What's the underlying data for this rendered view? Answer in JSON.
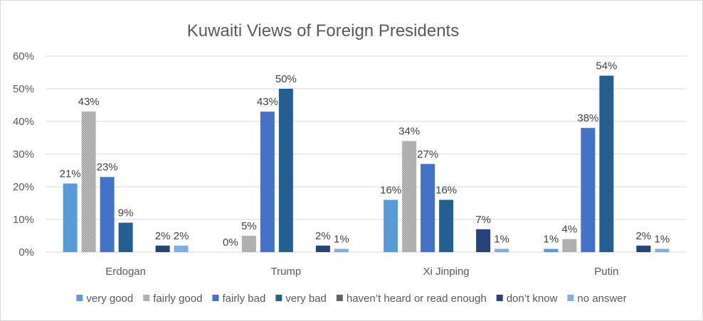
{
  "chart_data": {
    "type": "bar",
    "title": "Kuwaiti Views of Foreign Presidents",
    "xlabel": "",
    "ylabel": "",
    "categories": [
      "Erdogan",
      "Trump",
      "Xi Jinping",
      "Putin"
    ],
    "ylim": [
      0,
      60
    ],
    "yticks": [
      "0%",
      "10%",
      "20%",
      "30%",
      "40%",
      "50%",
      "60%"
    ],
    "grid": true,
    "legend_position": "bottom",
    "series": [
      {
        "name": "very good",
        "color": "#5b9bd5",
        "pattern": "solid",
        "values": [
          21,
          0,
          16,
          1
        ],
        "labels": [
          "21%",
          "0%",
          "16%",
          "1%"
        ]
      },
      {
        "name": "fairly good",
        "color": "#a5a5a5",
        "pattern": "dotted",
        "values": [
          43,
          5,
          34,
          4
        ],
        "labels": [
          "43%",
          "5%",
          "34%",
          "4%"
        ]
      },
      {
        "name": "fairly bad",
        "color": "#4472c4",
        "pattern": "solid",
        "values": [
          23,
          43,
          27,
          38
        ],
        "labels": [
          "23%",
          "43%",
          "27%",
          "38%"
        ]
      },
      {
        "name": "very bad",
        "color": "#255e91",
        "pattern": "solid",
        "values": [
          9,
          50,
          16,
          54
        ],
        "labels": [
          "9%",
          "50%",
          "16%",
          "54%"
        ]
      },
      {
        "name": "haven’t heard or read enough",
        "color": "#636363",
        "pattern": "solid",
        "values": [
          null,
          null,
          null,
          null
        ],
        "labels": [
          "",
          "",
          "",
          ""
        ]
      },
      {
        "name": "don’t know",
        "color": "#264478",
        "pattern": "solid",
        "values": [
          2,
          2,
          7,
          2
        ],
        "labels": [
          "2%",
          "2%",
          "7%",
          "2%"
        ]
      },
      {
        "name": "no answer",
        "color": "#7faee0",
        "pattern": "solid",
        "values": [
          2,
          1,
          1,
          1
        ],
        "labels": [
          "2%",
          "1%",
          "1%",
          "1%"
        ]
      }
    ]
  }
}
